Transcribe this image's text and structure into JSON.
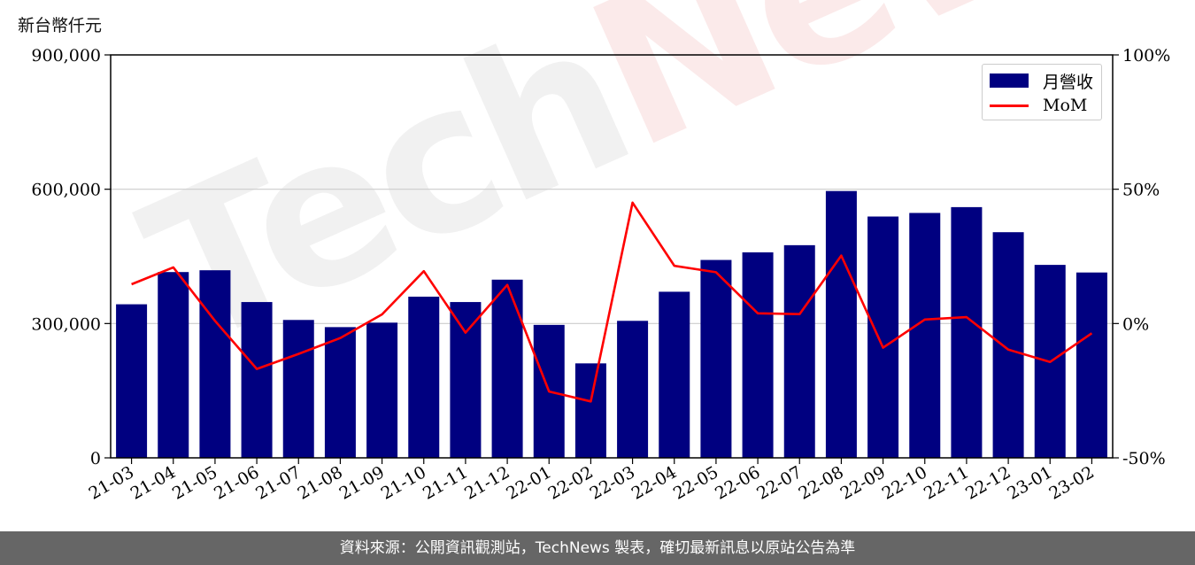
{
  "unit_label": "新台幣仟元",
  "watermark": {
    "text_a": "Tech",
    "text_b": "News"
  },
  "footer": {
    "text": "資料來源：公開資訊觀測站，TechNews 製表，確切最新訊息以原站公告為準"
  },
  "colors": {
    "bar": "#000080",
    "line": "#ff0000",
    "grid": "#cccccc",
    "footer_bg": "#666666"
  },
  "chart_data": {
    "type": "bar",
    "title": "",
    "categories": [
      "21-03",
      "21-04",
      "21-05",
      "21-06",
      "21-07",
      "21-08",
      "21-09",
      "21-10",
      "21-11",
      "21-12",
      "22-01",
      "22-02",
      "22-03",
      "22-04",
      "22-05",
      "22-06",
      "22-07",
      "22-08",
      "22-09",
      "22-10",
      "22-11",
      "22-12",
      "23-01",
      "23-02"
    ],
    "series": [
      {
        "name": "月營收",
        "type": "bar",
        "axis": "left",
        "values": [
          343000,
          415000,
          419000,
          348000,
          308000,
          292000,
          302000,
          360000,
          348000,
          398000,
          297000,
          211000,
          306000,
          371000,
          442000,
          459000,
          475000,
          596000,
          539000,
          547000,
          560000,
          504000,
          431000,
          414000
        ]
      },
      {
        "name": "MoM",
        "type": "line",
        "axis": "right",
        "values": [
          14.6,
          20.9,
          1.0,
          -16.9,
          -11.3,
          -5.4,
          3.4,
          19.5,
          -3.4,
          14.4,
          -25.3,
          -29.0,
          45.0,
          21.5,
          19.1,
          3.8,
          3.5,
          25.3,
          -9.0,
          1.5,
          2.4,
          -9.7,
          -14.3,
          -3.6
        ]
      }
    ],
    "y_left": {
      "range": [
        0,
        900000
      ],
      "ticks": [
        0,
        300000,
        600000,
        900000
      ],
      "tick_labels": [
        "0",
        "300,000",
        "600,000",
        "900,000"
      ]
    },
    "y_right": {
      "range": [
        -50,
        100
      ],
      "ticks": [
        -50,
        0,
        50,
        100
      ],
      "tick_labels": [
        "-50%",
        "0%",
        "50%",
        "100%"
      ]
    },
    "grid": "horizontal",
    "legend_position": "top-right"
  }
}
